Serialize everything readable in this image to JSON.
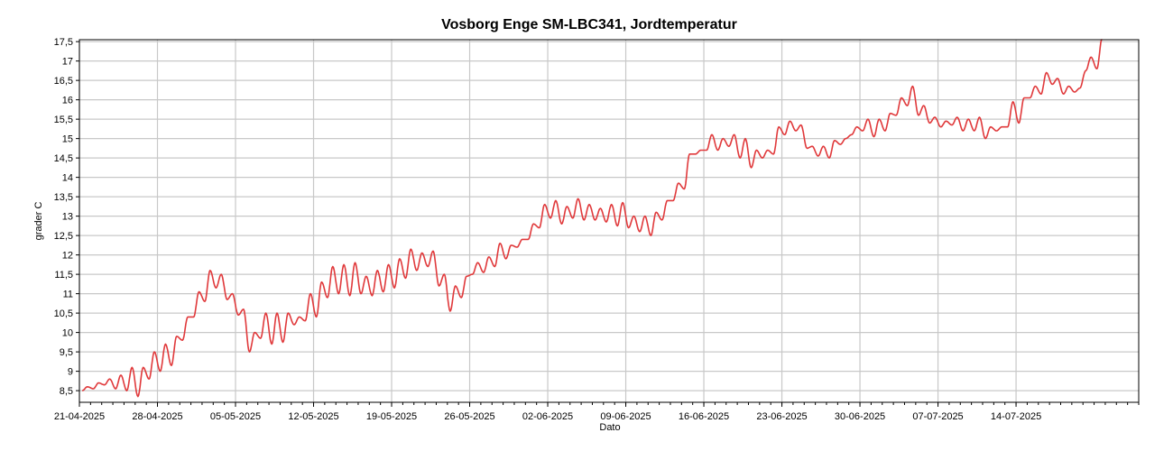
{
  "chart_data": {
    "type": "line",
    "title": "Vosborg Enge SM-LBC341, Jordtemperatur",
    "xlabel": "Dato",
    "ylabel": "grader C",
    "ylim": [
      8.2,
      17.55
    ],
    "xlim": [
      "2025-04-21",
      "2025-07-25"
    ],
    "grid": true,
    "line_color": "#e0393b",
    "y_ticks": [
      "8,5",
      "9",
      "9,5",
      "10",
      "10,5",
      "11",
      "11,5",
      "12",
      "12,5",
      "13",
      "13,5",
      "14",
      "14,5",
      "15",
      "15,5",
      "16",
      "16,5",
      "17",
      "17,5"
    ],
    "y_tick_values": [
      8.5,
      9,
      9.5,
      10,
      10.5,
      11,
      11.5,
      12,
      12.5,
      13,
      13.5,
      14,
      14.5,
      15,
      15.5,
      16,
      16.5,
      17,
      17.5
    ],
    "x_ticks": [
      "21-04-2025",
      "28-04-2025",
      "05-05-2025",
      "12-05-2025",
      "19-05-2025",
      "26-05-2025",
      "02-06-2025",
      "09-06-2025",
      "16-06-2025",
      "23-06-2025",
      "30-06-2025",
      "07-07-2025",
      "14-07-2025"
    ],
    "x_tick_dates": [
      "2025-04-21",
      "2025-04-28",
      "2025-05-05",
      "2025-05-12",
      "2025-05-19",
      "2025-05-26",
      "2025-06-02",
      "2025-06-09",
      "2025-06-16",
      "2025-06-23",
      "2025-06-30",
      "2025-07-07",
      "2025-07-14"
    ],
    "series": [
      {
        "values_daily_max_min": [
          [
            "2025-04-21",
            8.6,
            8.5
          ],
          [
            "2025-04-22",
            8.7,
            8.55
          ],
          [
            "2025-04-23",
            8.8,
            8.65
          ],
          [
            "2025-04-24",
            8.9,
            8.55
          ],
          [
            "2025-04-25",
            9.1,
            8.5
          ],
          [
            "2025-04-26",
            9.1,
            8.35
          ],
          [
            "2025-04-27",
            9.5,
            8.8
          ],
          [
            "2025-04-28",
            9.7,
            9.0
          ],
          [
            "2025-04-29",
            9.9,
            9.15
          ],
          [
            "2025-04-30",
            10.4,
            9.8
          ],
          [
            "2025-05-01",
            11.05,
            10.4
          ],
          [
            "2025-05-02",
            11.6,
            10.8
          ],
          [
            "2025-05-03",
            11.5,
            11.15
          ],
          [
            "2025-05-04",
            11.0,
            10.85
          ],
          [
            "2025-05-05",
            10.6,
            10.45
          ],
          [
            "2025-05-06",
            10.0,
            9.5
          ],
          [
            "2025-05-07",
            10.5,
            9.85
          ],
          [
            "2025-05-08",
            10.5,
            9.7
          ],
          [
            "2025-05-09",
            10.5,
            9.75
          ],
          [
            "2025-05-10",
            10.4,
            10.2
          ],
          [
            "2025-05-11",
            11.0,
            10.3
          ],
          [
            "2025-05-12",
            11.3,
            10.4
          ],
          [
            "2025-05-13",
            11.7,
            10.9
          ],
          [
            "2025-05-14",
            11.75,
            11.0
          ],
          [
            "2025-05-15",
            11.8,
            10.95
          ],
          [
            "2025-05-16",
            11.45,
            11.0
          ],
          [
            "2025-05-17",
            11.6,
            10.95
          ],
          [
            "2025-05-18",
            11.75,
            11.05
          ],
          [
            "2025-05-19",
            11.9,
            11.15
          ],
          [
            "2025-05-20",
            12.15,
            11.4
          ],
          [
            "2025-05-21",
            12.05,
            11.6
          ],
          [
            "2025-05-22",
            12.1,
            11.7
          ],
          [
            "2025-05-23",
            11.5,
            11.2
          ],
          [
            "2025-05-24",
            11.2,
            10.55
          ],
          [
            "2025-05-25",
            11.45,
            10.9
          ],
          [
            "2025-05-26",
            11.8,
            11.5
          ],
          [
            "2025-05-27",
            11.95,
            11.55
          ],
          [
            "2025-05-28",
            12.3,
            11.7
          ],
          [
            "2025-05-29",
            12.25,
            11.9
          ],
          [
            "2025-05-30",
            12.4,
            12.2
          ],
          [
            "2025-05-31",
            12.8,
            12.4
          ],
          [
            "2025-06-01",
            13.3,
            12.7
          ],
          [
            "2025-06-02",
            13.4,
            12.95
          ],
          [
            "2025-06-03",
            13.25,
            12.8
          ],
          [
            "2025-06-04",
            13.45,
            12.95
          ],
          [
            "2025-06-05",
            13.3,
            12.9
          ],
          [
            "2025-06-06",
            13.2,
            12.9
          ],
          [
            "2025-06-07",
            13.3,
            12.85
          ],
          [
            "2025-06-08",
            13.35,
            12.75
          ],
          [
            "2025-06-09",
            13.0,
            12.7
          ],
          [
            "2025-06-10",
            13.0,
            12.6
          ],
          [
            "2025-06-11",
            13.1,
            12.5
          ],
          [
            "2025-06-12",
            13.4,
            12.9
          ],
          [
            "2025-06-13",
            13.85,
            13.4
          ],
          [
            "2025-06-14",
            14.6,
            13.7
          ],
          [
            "2025-06-15",
            14.7,
            14.6
          ],
          [
            "2025-06-16",
            15.1,
            14.7
          ],
          [
            "2025-06-17",
            15.0,
            14.7
          ],
          [
            "2025-06-18",
            15.1,
            14.8
          ],
          [
            "2025-06-19",
            15.0,
            14.5
          ],
          [
            "2025-06-20",
            14.7,
            14.25
          ],
          [
            "2025-06-21",
            14.7,
            14.5
          ],
          [
            "2025-06-22",
            15.3,
            14.6
          ],
          [
            "2025-06-23",
            15.45,
            15.1
          ],
          [
            "2025-06-24",
            15.35,
            15.2
          ],
          [
            "2025-06-25",
            14.8,
            14.75
          ],
          [
            "2025-06-26",
            14.8,
            14.55
          ],
          [
            "2025-06-27",
            14.95,
            14.5
          ],
          [
            "2025-06-28",
            15.0,
            14.85
          ],
          [
            "2025-06-29",
            15.3,
            15.1
          ],
          [
            "2025-06-30",
            15.5,
            15.2
          ],
          [
            "2025-07-01",
            15.5,
            15.05
          ],
          [
            "2025-07-02",
            15.65,
            15.2
          ],
          [
            "2025-07-03",
            16.05,
            15.6
          ],
          [
            "2025-07-04",
            16.35,
            15.85
          ],
          [
            "2025-07-05",
            15.85,
            15.6
          ],
          [
            "2025-07-06",
            15.55,
            15.4
          ],
          [
            "2025-07-07",
            15.45,
            15.3
          ],
          [
            "2025-07-08",
            15.55,
            15.35
          ],
          [
            "2025-07-09",
            15.5,
            15.2
          ],
          [
            "2025-07-10",
            15.55,
            15.2
          ],
          [
            "2025-07-11",
            15.3,
            15.0
          ],
          [
            "2025-07-12",
            15.3,
            15.2
          ],
          [
            "2025-07-13",
            15.95,
            15.3
          ],
          [
            "2025-07-14",
            16.05,
            15.4
          ],
          [
            "2025-07-15",
            16.35,
            16.05
          ],
          [
            "2025-07-16",
            16.7,
            16.15
          ],
          [
            "2025-07-17",
            16.55,
            16.4
          ],
          [
            "2025-07-18",
            16.35,
            16.15
          ],
          [
            "2025-07-19",
            16.3,
            16.2
          ],
          [
            "2025-07-20",
            17.1,
            16.75
          ],
          [
            "2025-07-21",
            17.6,
            16.8
          ]
        ]
      }
    ]
  }
}
